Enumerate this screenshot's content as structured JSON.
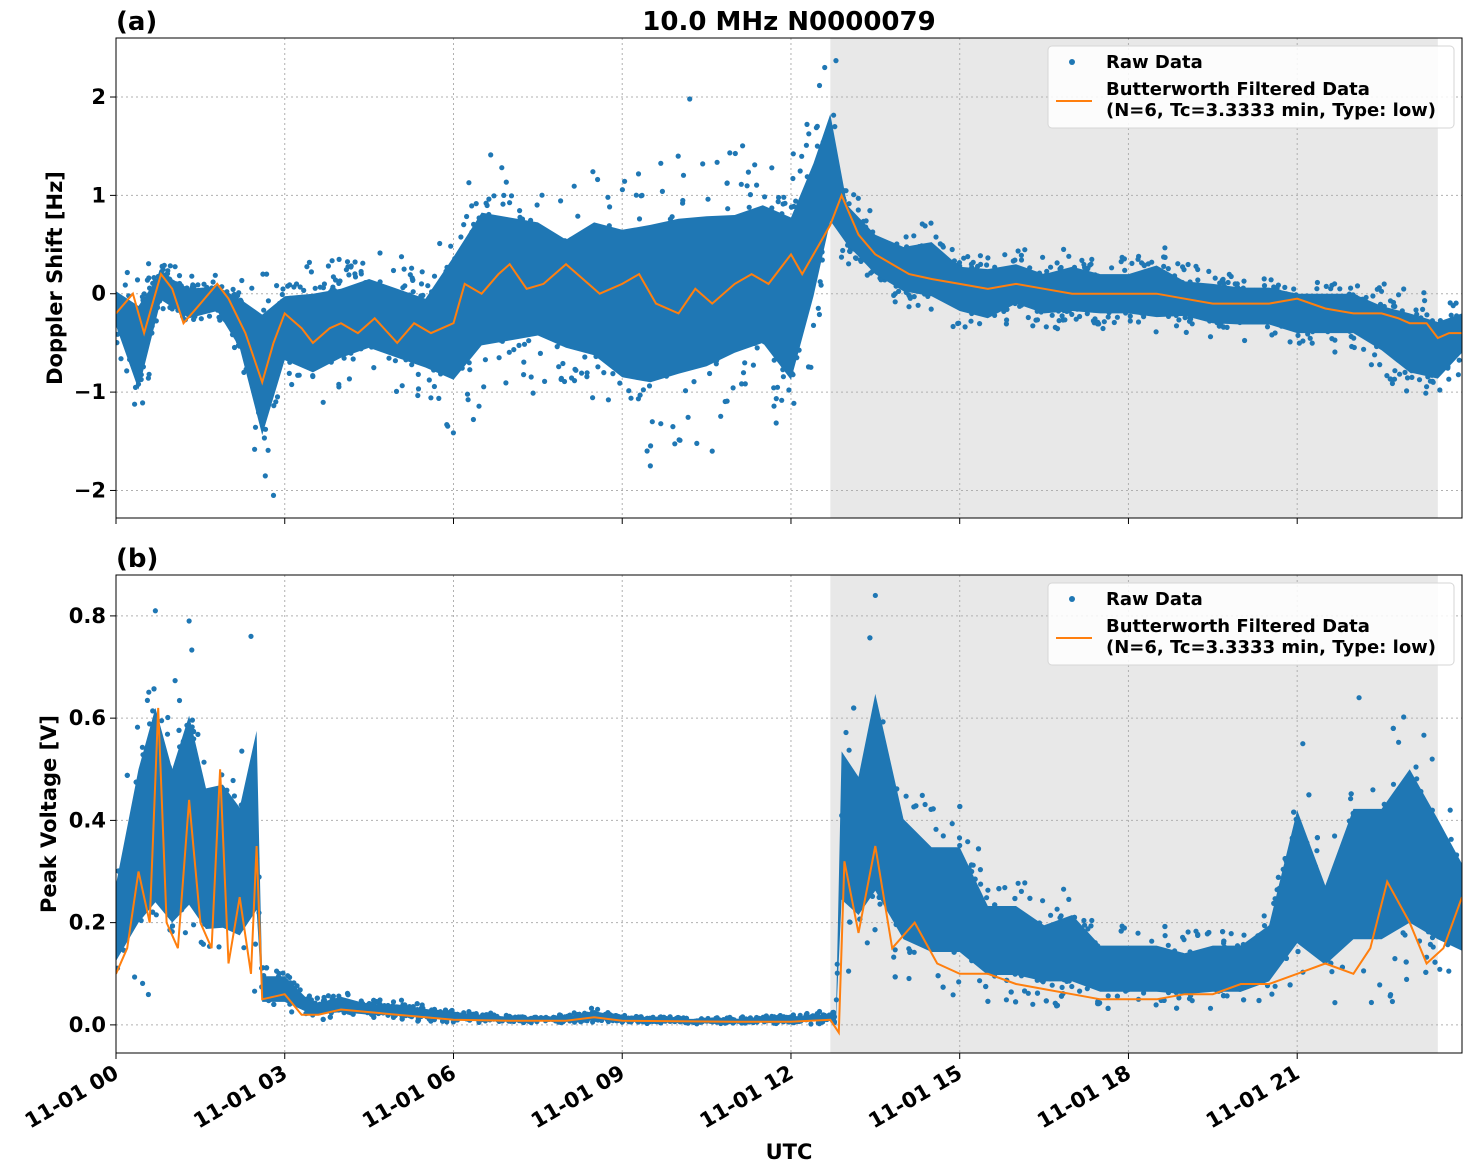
{
  "figure": {
    "title": "10.0 MHz N0000079",
    "xlabel": "UTC"
  },
  "colors": {
    "raw": "#1f77b4",
    "filtered": "#ff7f0e",
    "shade": "#e8e8e8",
    "grid": "#b0b0b0"
  },
  "chart_data": [
    {
      "type": "scatter",
      "panel_label": "(a)",
      "ylabel": "Doppler Shift [Hz]",
      "ylim": [
        -2.28,
        2.6
      ],
      "yticks": [
        -2,
        -1,
        0,
        1,
        2
      ],
      "ytick_labels": [
        "−2",
        "−1",
        "0",
        "1",
        "2"
      ],
      "xlim": [
        0,
        23.93
      ],
      "shaded_span": [
        12.7,
        23.5
      ],
      "grid": true,
      "legend": {
        "placement": "top-right",
        "entries": [
          {
            "label": "Raw Data",
            "lines": [
              "Raw Data"
            ]
          },
          {
            "label": "Butterworth Filtered Data (N=6, Tc=3.3333 min, Type: low)",
            "lines": [
              "Butterworth Filtered Data",
              "(N=6, Tc=3.3333 min, Type: low)"
            ]
          }
        ]
      },
      "series": [
        {
          "name": "Raw Data",
          "style": "points",
          "x": [
            0,
            0.4,
            0.8,
            1.3,
            1.8,
            2.2,
            2.6,
            3.0,
            3.5,
            4.0,
            4.5,
            5.0,
            5.5,
            6.0,
            6.5,
            7.0,
            7.5,
            8.0,
            8.5,
            9.0,
            9.5,
            10.0,
            10.5,
            11.0,
            11.5,
            12.0,
            12.4,
            12.7,
            13.0,
            13.5,
            14.0,
            14.5,
            15.0,
            15.5,
            16.0,
            16.5,
            17.0,
            17.5,
            18.0,
            18.5,
            19.0,
            19.5,
            20.0,
            20.5,
            21.0,
            21.5,
            22.0,
            22.5,
            23.0,
            23.5,
            23.93
          ],
          "y_low": [
            -0.5,
            -1.4,
            -0.2,
            -0.4,
            -0.3,
            -0.8,
            -2.05,
            -1.0,
            -1.2,
            -1.0,
            -0.9,
            -1.0,
            -1.1,
            -1.5,
            -1.2,
            -1.1,
            -1.0,
            -1.1,
            -1.3,
            -1.6,
            -1.7,
            -1.6,
            -1.5,
            -1.3,
            -1.2,
            -1.7,
            -0.7,
            0.2,
            0.3,
            0.0,
            -0.2,
            -0.3,
            -0.4,
            -0.5,
            -0.3,
            -0.4,
            -0.4,
            -0.4,
            -0.4,
            -0.5,
            -0.4,
            -0.5,
            -0.5,
            -0.5,
            -0.6,
            -0.6,
            -0.6,
            -0.8,
            -1.1,
            -1.15,
            -0.8
          ],
          "y_high": [
            0.2,
            0.3,
            0.35,
            0.2,
            0.2,
            0.2,
            0.4,
            0.3,
            0.4,
            0.4,
            0.5,
            0.4,
            0.3,
            1.0,
            1.5,
            1.4,
            1.3,
            1.1,
            1.4,
            1.4,
            1.5,
            1.55,
            1.55,
            1.5,
            1.6,
            1.6,
            2.0,
            2.37,
            1.1,
            0.8,
            0.7,
            0.8,
            0.5,
            0.5,
            0.5,
            0.4,
            0.5,
            0.4,
            0.4,
            0.55,
            0.3,
            0.3,
            0.25,
            0.25,
            0.2,
            0.2,
            0.2,
            0.1,
            0.1,
            0.0,
            0.0
          ],
          "outliers": [
            [
              10.2,
              1.98
            ],
            [
              9.5,
              -1.75
            ],
            [
              10.6,
              -1.6
            ],
            [
              2.8,
              -2.05
            ],
            [
              12.6,
              2.3
            ],
            [
              12.8,
              2.37
            ]
          ]
        },
        {
          "name": "Butterworth Filtered Data",
          "style": "line",
          "x": [
            0,
            0.3,
            0.5,
            0.8,
            1.0,
            1.2,
            1.5,
            1.8,
            2.0,
            2.3,
            2.6,
            2.8,
            3.0,
            3.3,
            3.5,
            3.8,
            4.0,
            4.3,
            4.6,
            5.0,
            5.3,
            5.6,
            6.0,
            6.2,
            6.5,
            6.8,
            7.0,
            7.3,
            7.6,
            8.0,
            8.3,
            8.6,
            9.0,
            9.3,
            9.6,
            10.0,
            10.3,
            10.6,
            11.0,
            11.3,
            11.6,
            12.0,
            12.2,
            12.5,
            12.7,
            12.9,
            13.2,
            13.5,
            13.8,
            14.1,
            14.5,
            15.0,
            15.5,
            16.0,
            16.5,
            17.0,
            17.5,
            18.0,
            18.5,
            19.0,
            19.5,
            20.0,
            20.5,
            21.0,
            21.5,
            22.0,
            22.5,
            22.8,
            23.0,
            23.3,
            23.5,
            23.7,
            23.93
          ],
          "y": [
            -0.2,
            0.0,
            -0.4,
            0.2,
            0.05,
            -0.3,
            -0.1,
            0.1,
            -0.05,
            -0.4,
            -0.9,
            -0.5,
            -0.2,
            -0.35,
            -0.5,
            -0.35,
            -0.3,
            -0.4,
            -0.25,
            -0.5,
            -0.3,
            -0.4,
            -0.3,
            0.1,
            0.0,
            0.2,
            0.3,
            0.05,
            0.1,
            0.3,
            0.15,
            0.0,
            0.1,
            0.2,
            -0.1,
            -0.2,
            0.05,
            -0.1,
            0.1,
            0.2,
            0.1,
            0.4,
            0.2,
            0.5,
            0.7,
            1.0,
            0.6,
            0.4,
            0.3,
            0.2,
            0.15,
            0.1,
            0.05,
            0.1,
            0.05,
            0.0,
            0.0,
            0.0,
            0.0,
            -0.05,
            -0.1,
            -0.1,
            -0.1,
            -0.05,
            -0.15,
            -0.2,
            -0.2,
            -0.25,
            -0.3,
            -0.3,
            -0.45,
            -0.4,
            -0.4
          ]
        }
      ]
    },
    {
      "type": "scatter",
      "panel_label": "(b)",
      "ylabel": "Peak Voltage [V]",
      "ylim": [
        -0.055,
        0.88
      ],
      "yticks": [
        0.0,
        0.2,
        0.4,
        0.6,
        0.8
      ],
      "ytick_labels": [
        "0.0",
        "0.2",
        "0.4",
        "0.6",
        "0.8"
      ],
      "xlim": [
        0,
        23.93
      ],
      "xticks": [
        0,
        3,
        6,
        9,
        12,
        15,
        18,
        21
      ],
      "xtick_labels": [
        "11-01 00",
        "11-01 03",
        "11-01 06",
        "11-01 09",
        "11-01 12",
        "11-01 15",
        "11-01 18",
        "11-01 21"
      ],
      "shaded_span": [
        12.7,
        23.5
      ],
      "grid": true,
      "legend": {
        "placement": "top-right",
        "entries": [
          {
            "label": "Raw Data",
            "lines": [
              "Raw Data"
            ]
          },
          {
            "label": "Butterworth Filtered Data (N=6, Tc=3.3333 min, Type: low)",
            "lines": [
              "Butterworth Filtered Data",
              "(N=6, Tc=3.3333 min, Type: low)"
            ]
          }
        ]
      },
      "series": [
        {
          "name": "Raw Data",
          "style": "points",
          "x": [
            0,
            0.4,
            0.7,
            1.0,
            1.3,
            1.6,
            1.9,
            2.2,
            2.5,
            2.6,
            3.0,
            3.5,
            4.0,
            4.5,
            5.0,
            5.5,
            6.0,
            7.0,
            8.0,
            8.5,
            9.0,
            10.0,
            11.0,
            12.0,
            12.8,
            12.9,
            13.2,
            13.5,
            14.0,
            14.5,
            15.0,
            15.5,
            16.0,
            16.5,
            17.0,
            17.5,
            18.0,
            18.5,
            19.0,
            19.5,
            20.0,
            20.5,
            21.0,
            21.5,
            22.0,
            22.5,
            23.0,
            23.5,
            23.93
          ],
          "y_low": [
            0.05,
            0.05,
            0.05,
            0.05,
            0.05,
            0.05,
            0.05,
            0.05,
            0.05,
            0.02,
            0.02,
            0.01,
            0.01,
            0.01,
            0.01,
            0.005,
            0.005,
            0.003,
            0.003,
            0.003,
            0.003,
            0.002,
            0.002,
            0.002,
            0.0,
            0.1,
            0.08,
            0.07,
            0.05,
            0.04,
            0.04,
            0.03,
            0.03,
            0.03,
            0.02,
            0.02,
            0.02,
            0.02,
            0.02,
            0.02,
            0.02,
            0.03,
            0.03,
            0.04,
            0.04,
            0.04,
            0.05,
            0.05,
            0.06
          ],
          "y_high": [
            0.35,
            0.65,
            0.81,
            0.65,
            0.79,
            0.6,
            0.61,
            0.55,
            0.75,
            0.12,
            0.12,
            0.05,
            0.07,
            0.05,
            0.05,
            0.04,
            0.03,
            0.02,
            0.02,
            0.035,
            0.02,
            0.015,
            0.015,
            0.02,
            0.03,
            0.68,
            0.62,
            0.84,
            0.52,
            0.45,
            0.45,
            0.3,
            0.3,
            0.25,
            0.28,
            0.2,
            0.2,
            0.2,
            0.18,
            0.2,
            0.2,
            0.25,
            0.55,
            0.35,
            0.55,
            0.55,
            0.65,
            0.52,
            0.4
          ],
          "outliers": [
            [
              0.7,
              0.81
            ],
            [
              1.3,
              0.79
            ],
            [
              2.4,
              0.76
            ],
            [
              13.5,
              0.84
            ],
            [
              22.1,
              0.64
            ],
            [
              21.1,
              0.55
            ],
            [
              23.4,
              0.52
            ]
          ]
        },
        {
          "name": "Butterworth Filtered Data",
          "style": "line",
          "x": [
            0,
            0.2,
            0.4,
            0.6,
            0.75,
            0.9,
            1.1,
            1.3,
            1.5,
            1.7,
            1.85,
            2.0,
            2.2,
            2.4,
            2.5,
            2.6,
            3.0,
            3.3,
            3.6,
            4.0,
            4.5,
            5.0,
            5.5,
            6.0,
            7.0,
            8.0,
            8.5,
            9.0,
            10.0,
            11.0,
            12.0,
            12.7,
            12.85,
            12.95,
            13.2,
            13.5,
            13.8,
            14.2,
            14.6,
            15.0,
            15.5,
            16.0,
            16.5,
            17.0,
            17.5,
            18.0,
            18.5,
            19.0,
            19.5,
            20.0,
            20.5,
            21.0,
            21.5,
            22.0,
            22.3,
            22.6,
            23.0,
            23.3,
            23.6,
            23.93
          ],
          "y": [
            0.1,
            0.15,
            0.3,
            0.2,
            0.62,
            0.2,
            0.15,
            0.44,
            0.2,
            0.15,
            0.5,
            0.12,
            0.25,
            0.1,
            0.35,
            0.05,
            0.06,
            0.02,
            0.02,
            0.03,
            0.025,
            0.02,
            0.015,
            0.01,
            0.008,
            0.008,
            0.015,
            0.008,
            0.007,
            0.006,
            0.006,
            0.01,
            -0.015,
            0.32,
            0.18,
            0.35,
            0.15,
            0.2,
            0.12,
            0.1,
            0.1,
            0.08,
            0.07,
            0.06,
            0.05,
            0.05,
            0.05,
            0.06,
            0.06,
            0.08,
            0.08,
            0.1,
            0.12,
            0.1,
            0.15,
            0.28,
            0.2,
            0.12,
            0.15,
            0.25
          ]
        }
      ]
    }
  ]
}
